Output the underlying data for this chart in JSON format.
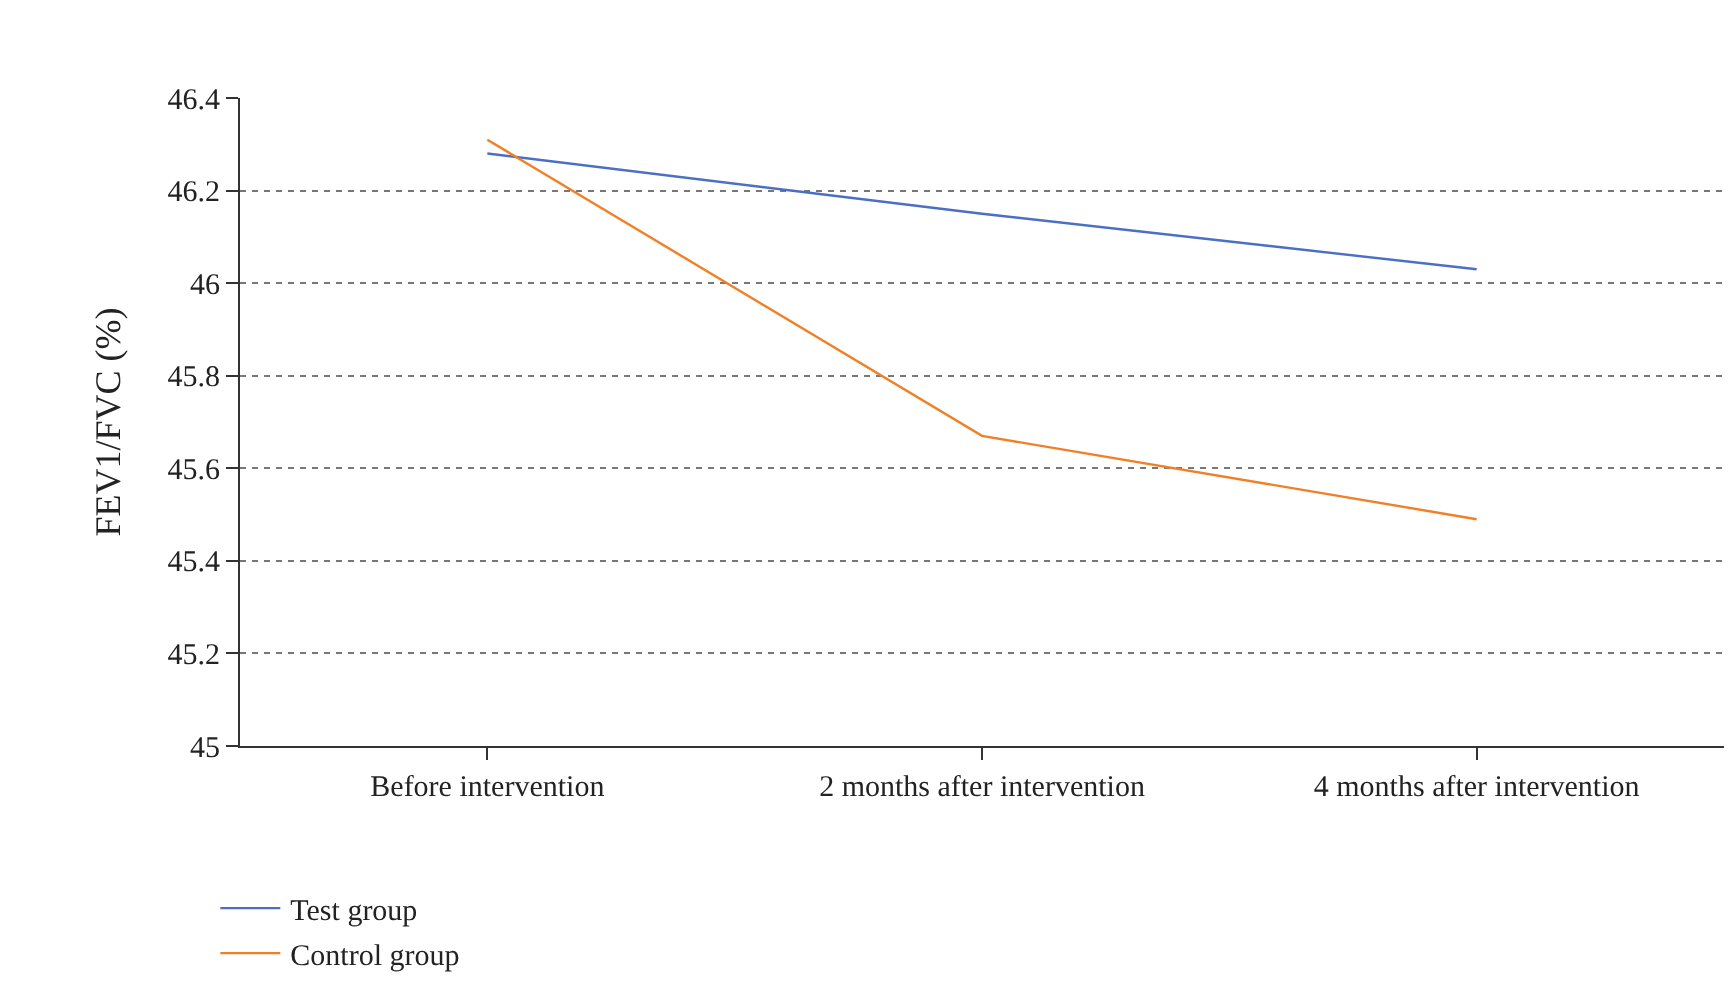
{
  "chart_data": {
    "type": "line",
    "ylabel": "FEV1/FVC (%)",
    "categories": [
      "Before intervention",
      "2 months after intervention",
      "4 months after intervention"
    ],
    "series": [
      {
        "name": "Test group",
        "color": "#4a6fc4",
        "values": [
          46.28,
          46.15,
          46.03
        ]
      },
      {
        "name": "Control group",
        "color": "#f07f25",
        "values": [
          46.31,
          45.67,
          45.49
        ]
      }
    ],
    "ylim": [
      45,
      46.4
    ],
    "yticks": [
      45,
      45.2,
      45.4,
      45.6,
      45.8,
      46,
      46.2,
      46.4
    ],
    "grid": "y",
    "legend": "bottom left",
    "marker": "none",
    "line_style": "solid"
  }
}
